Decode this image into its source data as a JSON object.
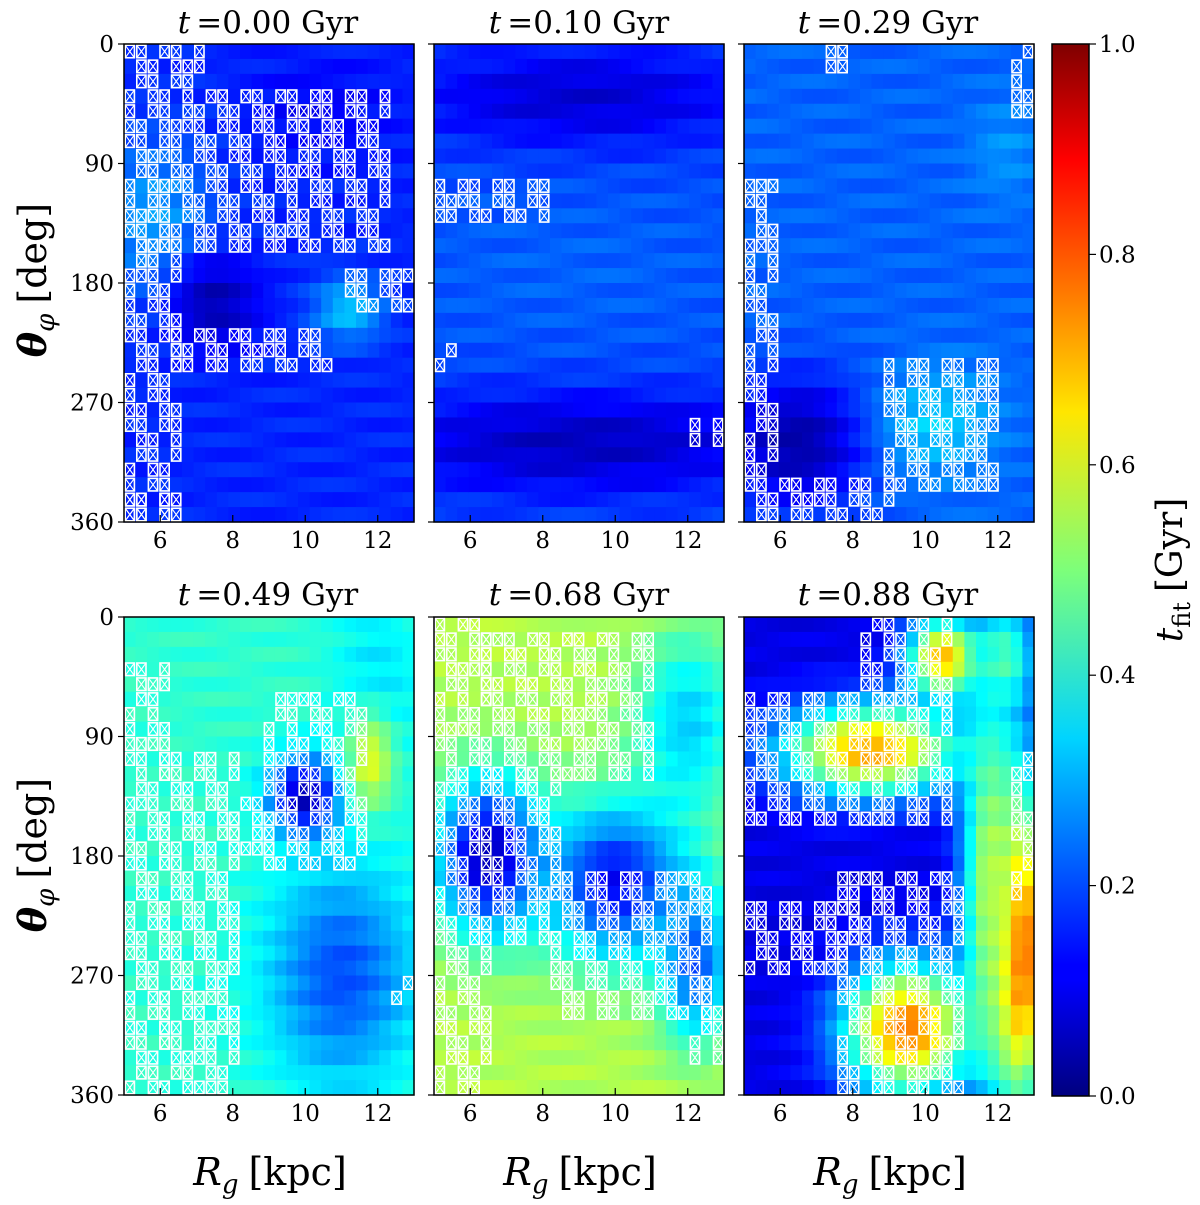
{
  "chart_data": {
    "type": "heatmap",
    "figure_description_axes": {
      "xlabel": "R_g [kpc]",
      "ylabel": "θ_φ [deg]",
      "xlim": [
        5,
        13
      ],
      "ylim": [
        0,
        360
      ],
      "x_ticks": [
        6,
        8,
        10,
        12
      ],
      "y_ticks": [
        0,
        90,
        180,
        270,
        360
      ]
    },
    "colorbar": {
      "label": "t_fit [Gyr]",
      "range": [
        0.0,
        1.0
      ],
      "ticks": [
        "0.0",
        "0.2",
        "0.4",
        "0.6",
        "0.8",
        "1.0"
      ],
      "colormap": "jet"
    },
    "panels": [
      {
        "id": "p1",
        "title_prefix": "t",
        "title_value": "=0.00 Gyr",
        "base": 0.16,
        "blobs": [
          {
            "cx": 5.8,
            "cy": 130,
            "rx": 1.6,
            "ry": 60,
            "v": 0.28
          },
          {
            "cx": 11.2,
            "cy": 200,
            "rx": 1.0,
            "ry": 25,
            "v": 0.32
          },
          {
            "cx": 7.5,
            "cy": 195,
            "rx": 1.2,
            "ry": 35,
            "v": 0.05
          },
          {
            "cx": 10.5,
            "cy": 50,
            "rx": 2.0,
            "ry": 40,
            "v": 0.12
          }
        ],
        "hatch": [
          [
            5.2,
            0,
            7.0,
            30
          ],
          [
            5.2,
            40,
            12.2,
            150
          ],
          [
            5.2,
            150,
            6.5,
            350
          ],
          [
            6.5,
            215,
            10.5,
            240
          ],
          [
            11.2,
            170,
            13.0,
            200
          ],
          [
            5.2,
            340,
            6.0,
            360
          ]
        ]
      },
      {
        "id": "p2",
        "title_prefix": "t",
        "title_value": "=0.10 Gyr",
        "base": 0.2,
        "blobs": [
          {
            "cx": 9.0,
            "cy": 40,
            "rx": 5.0,
            "ry": 40,
            "v": 0.08
          },
          {
            "cx": 9.0,
            "cy": 300,
            "rx": 6.0,
            "ry": 40,
            "v": 0.06
          },
          {
            "cx": 9.0,
            "cy": 170,
            "rx": 5.0,
            "ry": 60,
            "v": 0.22
          }
        ],
        "hatch": [
          [
            5.0,
            110,
            8.0,
            130
          ],
          [
            5.0,
            225,
            5.5,
            245
          ],
          [
            12.2,
            285,
            13.0,
            300
          ]
        ]
      },
      {
        "id": "p3",
        "title_prefix": "t",
        "title_value": "=0.29 Gyr",
        "base": 0.22,
        "blobs": [
          {
            "cx": 6.5,
            "cy": 300,
            "rx": 2.0,
            "ry": 50,
            "v": 0.04
          },
          {
            "cx": 10.3,
            "cy": 285,
            "rx": 1.6,
            "ry": 40,
            "v": 0.33
          },
          {
            "cx": 12.2,
            "cy": 80,
            "rx": 1.0,
            "ry": 40,
            "v": 0.27
          }
        ],
        "hatch": [
          [
            5.0,
            110,
            5.8,
            360
          ],
          [
            6.0,
            330,
            9.0,
            360
          ],
          [
            9.0,
            240,
            11.8,
            330
          ],
          [
            7.0,
            0,
            8.0,
            20
          ],
          [
            12.5,
            0,
            13.0,
            50
          ]
        ]
      },
      {
        "id": "p4",
        "title_prefix": "t",
        "title_value": "=0.49 Gyr",
        "base": 0.42,
        "blobs": [
          {
            "cx": 12.0,
            "cy": 60,
            "rx": 1.2,
            "ry": 80,
            "v": 0.34
          },
          {
            "cx": 10.0,
            "cy": 135,
            "rx": 1.0,
            "ry": 30,
            "v": 0.04
          },
          {
            "cx": 11.8,
            "cy": 110,
            "rx": 0.7,
            "ry": 40,
            "v": 0.6
          },
          {
            "cx": 11.0,
            "cy": 270,
            "rx": 2.0,
            "ry": 80,
            "v": 0.2
          }
        ],
        "hatch": [
          [
            5.0,
            40,
            6.0,
            360
          ],
          [
            6.0,
            110,
            8.0,
            360
          ],
          [
            8.0,
            140,
            9.5,
            170
          ],
          [
            9.0,
            60,
            11.5,
            190
          ],
          [
            12.5,
            270,
            13.0,
            290
          ]
        ]
      },
      {
        "id": "p5",
        "title_prefix": "t",
        "title_value": "=0.68 Gyr",
        "base": 0.55,
        "blobs": [
          {
            "cx": 12.0,
            "cy": 80,
            "rx": 1.5,
            "ry": 70,
            "v": 0.33
          },
          {
            "cx": 6.5,
            "cy": 180,
            "rx": 1.5,
            "ry": 60,
            "v": 0.05
          },
          {
            "cx": 10.0,
            "cy": 200,
            "rx": 2.0,
            "ry": 60,
            "v": 0.12
          },
          {
            "cx": 12.2,
            "cy": 260,
            "rx": 1.0,
            "ry": 60,
            "v": 0.2
          }
        ],
        "hatch": [
          [
            5.2,
            0,
            6.5,
            360
          ],
          [
            6.5,
            20,
            11.0,
            120
          ],
          [
            6.8,
            120,
            8.5,
            240
          ],
          [
            8.5,
            200,
            12.5,
            300
          ],
          [
            12.2,
            280,
            13.0,
            330
          ]
        ]
      },
      {
        "id": "p6",
        "title_prefix": "t",
        "title_value": "=0.88 Gyr",
        "base": 0.1,
        "blobs": [
          {
            "cx": 8.5,
            "cy": 100,
            "rx": 2.5,
            "ry": 35,
            "v": 0.72
          },
          {
            "cx": 9.5,
            "cy": 310,
            "rx": 1.8,
            "ry": 50,
            "v": 0.76
          },
          {
            "cx": 12.6,
            "cy": 250,
            "rx": 0.8,
            "ry": 120,
            "v": 0.85
          },
          {
            "cx": 11.8,
            "cy": 200,
            "rx": 0.8,
            "ry": 140,
            "v": 0.55
          },
          {
            "cx": 10.5,
            "cy": 30,
            "rx": 1.0,
            "ry": 30,
            "v": 0.7
          },
          {
            "cx": 12.2,
            "cy": 30,
            "rx": 0.8,
            "ry": 40,
            "v": 0.45
          }
        ],
        "hatch": [
          [
            5.2,
            60,
            10.5,
            150
          ],
          [
            8.5,
            0,
            10.5,
            60
          ],
          [
            5.2,
            220,
            8.0,
            270
          ],
          [
            7.8,
            200,
            11.0,
            360
          ],
          [
            12.6,
            110,
            13.0,
            210
          ]
        ]
      }
    ]
  },
  "labels": {
    "ylabel_sym": "θ",
    "ylabel_sub": "φ",
    "ylabel_unit": "[deg]",
    "xlabel_sym": "R",
    "xlabel_sub": "g",
    "xlabel_unit": "[kpc]",
    "cb_sym": "t",
    "cb_sub": "fit",
    "cb_unit": "[Gyr]"
  }
}
